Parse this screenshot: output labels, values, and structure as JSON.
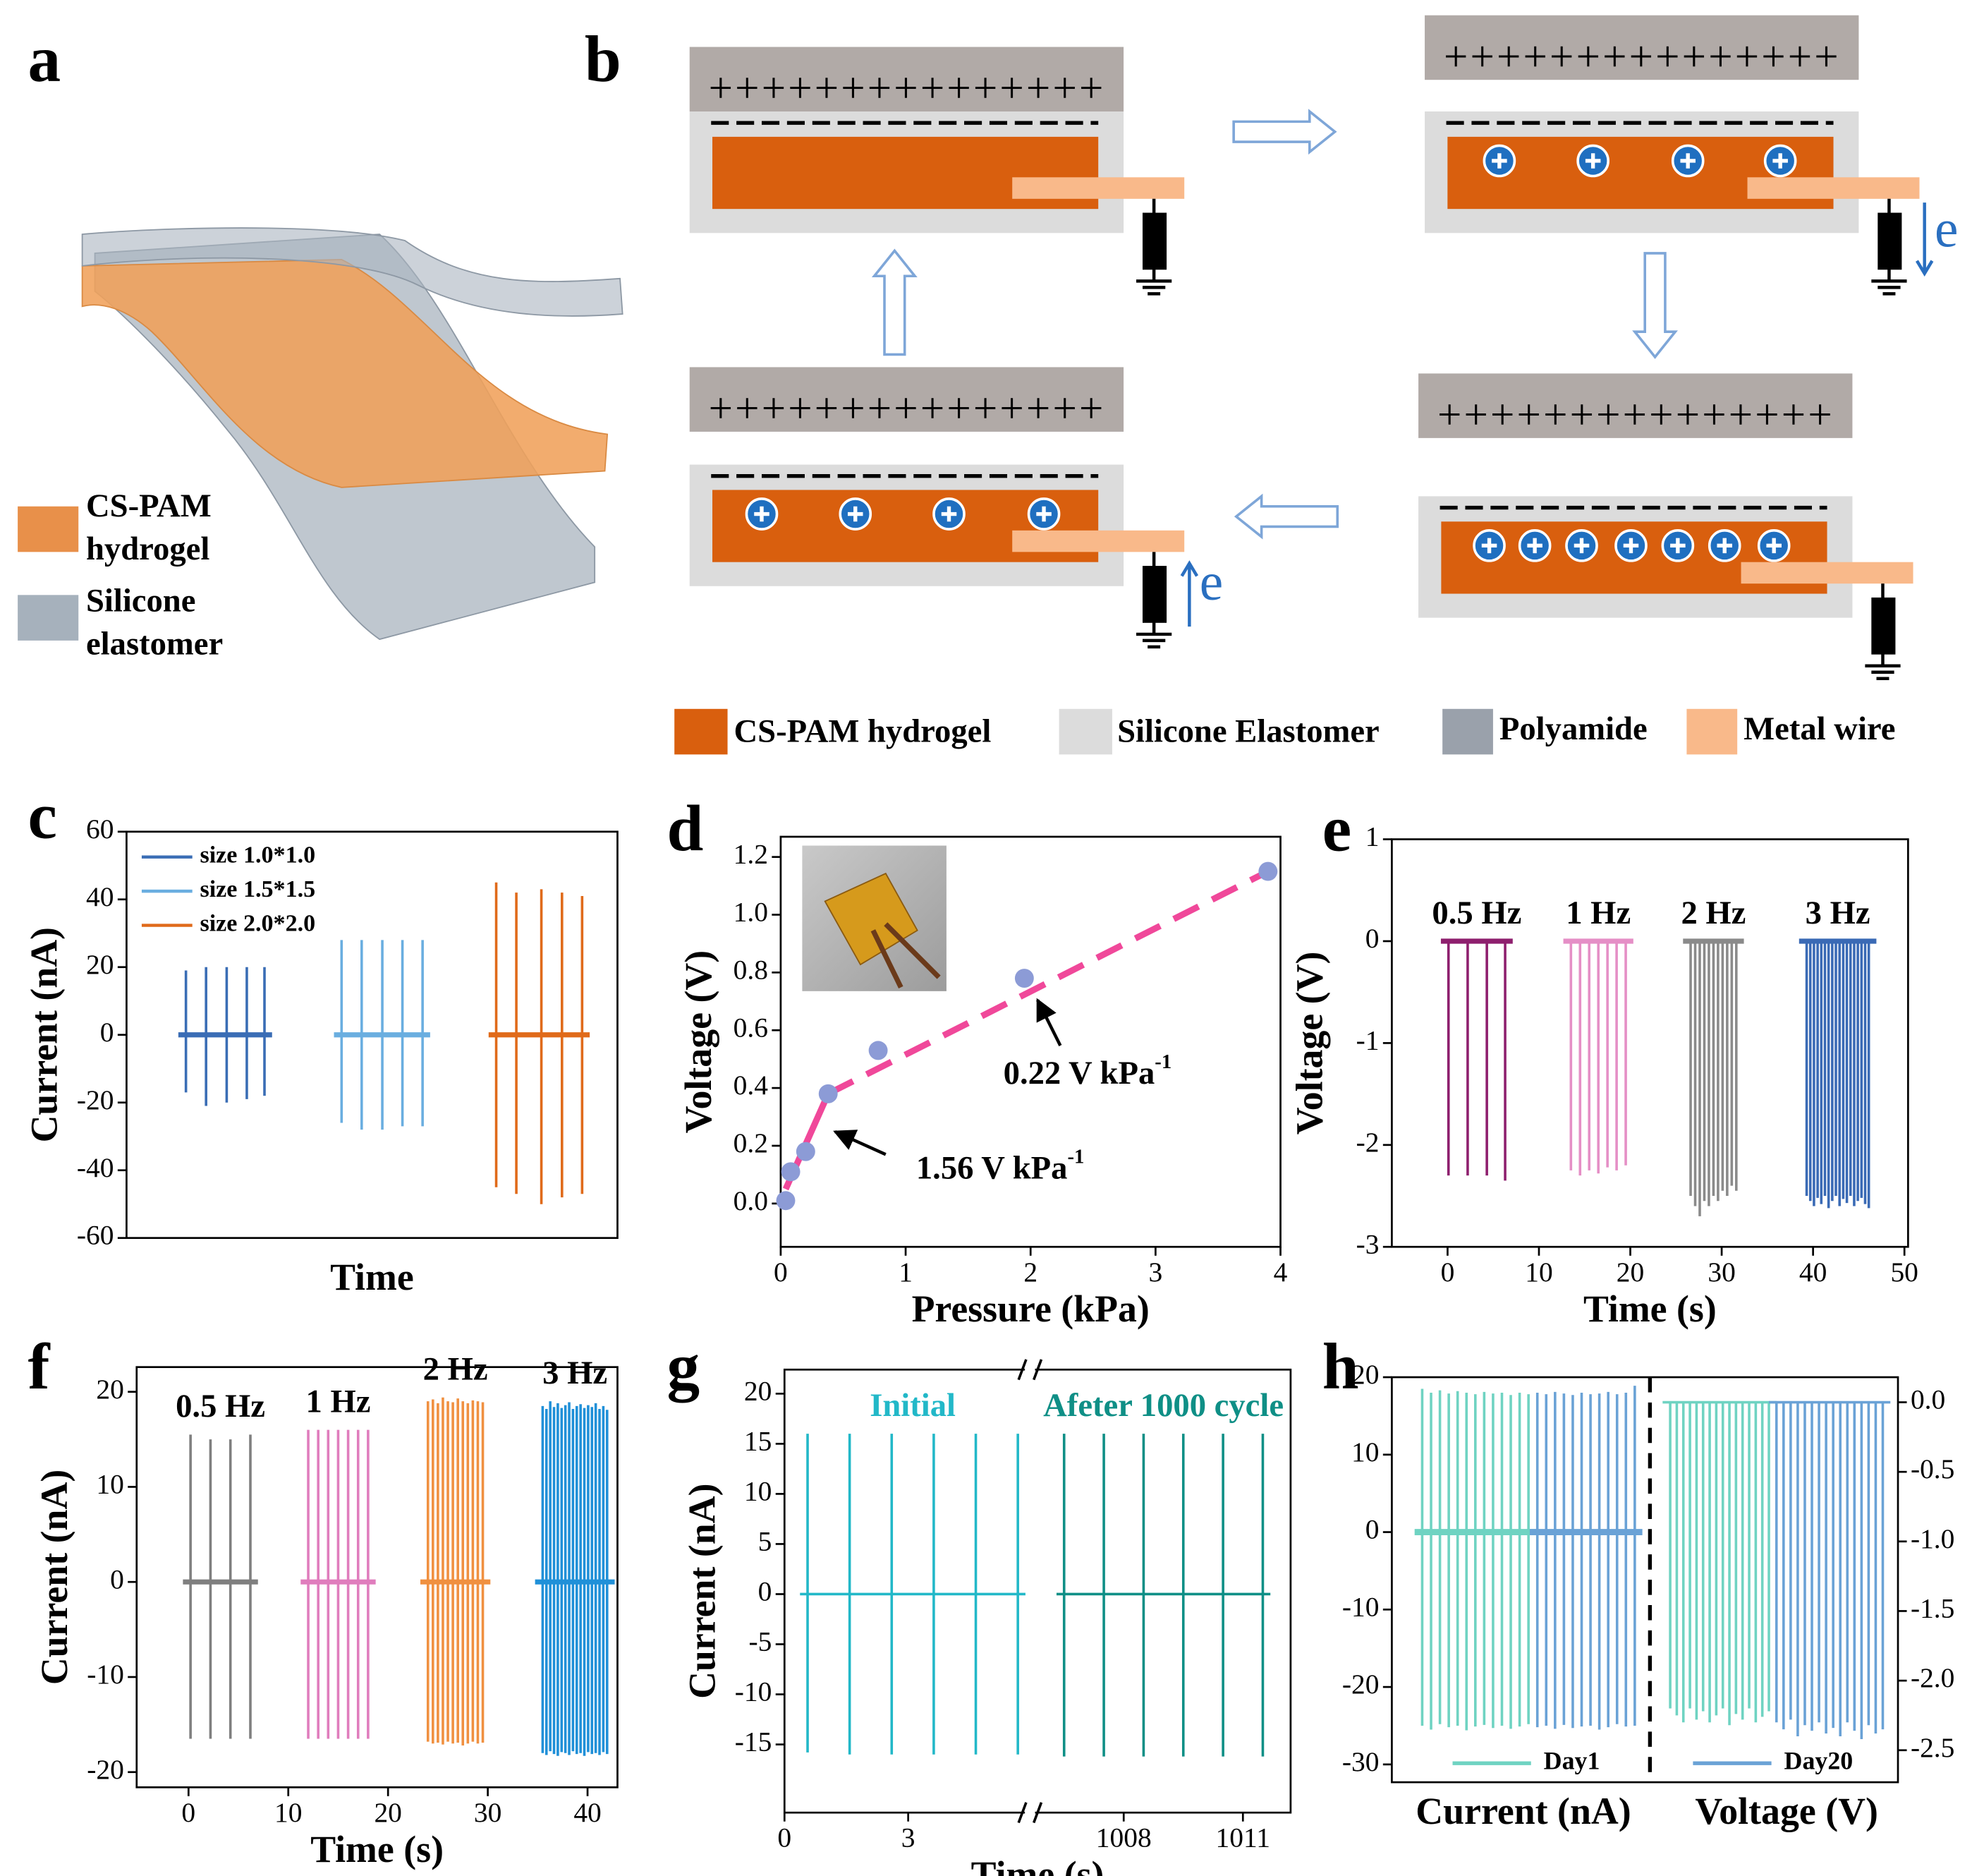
{
  "panel_a": {
    "label": "a",
    "legend": [
      {
        "lines": [
          "CS-PAM",
          "hydrogel"
        ]
      },
      {
        "lines": [
          "Silicone",
          "elastomer"
        ]
      }
    ]
  },
  "panel_b": {
    "label": "b",
    "charges": "+++++++++++++++",
    "electron": "e",
    "legend": [
      "CS-PAM hydrogel",
      "Silicone Elastomer",
      "Polyamide",
      "Metal wire"
    ]
  },
  "chart_data": [
    {
      "panel": "c",
      "type": "spike",
      "ylabel": "Current (nA)",
      "xlabel": "Time",
      "xlim": [
        0,
        100
      ],
      "ylim": [
        -60,
        60
      ],
      "yticks": [
        -60,
        -40,
        -20,
        0,
        20,
        40,
        60
      ],
      "legend": "upper left",
      "series": [
        {
          "name": "size 1.0*1.0",
          "color": "#3a6db5",
          "x": [
            12.1,
            16.2,
            20.4,
            24.5,
            28.1
          ],
          "peaks": [
            19,
            20,
            20,
            20,
            20
          ],
          "troughs": [
            -17,
            -21,
            -20,
            -19,
            -18
          ]
        },
        {
          "name": "size 1.5*1.5",
          "color": "#6aaee0",
          "x": [
            43.8,
            47.9,
            52.1,
            56.2,
            60.3
          ],
          "peaks": [
            28,
            28,
            28,
            28,
            28
          ],
          "troughs": [
            -26,
            -28,
            -28,
            -27,
            -27
          ]
        },
        {
          "name": "size 2.0*2.0",
          "color": "#e06a1a",
          "x": [
            75.3,
            79.4,
            84.5,
            88.7,
            92.8
          ],
          "peaks": [
            45,
            42,
            43,
            42,
            41
          ],
          "troughs": [
            -45,
            -47,
            -50,
            -48,
            -47
          ]
        }
      ]
    },
    {
      "panel": "d",
      "type": "scatter",
      "ylabel": "Voltage (V)",
      "xlabel": "Pressure (kPa)",
      "xlim": [
        0,
        4
      ],
      "ylim": [
        -0.15,
        1.27
      ],
      "xticks": [
        0,
        1,
        2,
        3,
        4
      ],
      "yticks": [
        {
          "value": 0,
          "label": "0.0"
        },
        0.2,
        0.4,
        0.6,
        0.8,
        {
          "value": 1,
          "label": "1.0"
        },
        1.2
      ],
      "color": "#8c9bd6",
      "x": [
        0.04,
        0.08,
        0.2,
        0.38,
        0.78,
        1.95,
        3.9
      ],
      "values": [
        0.01,
        0.11,
        0.18,
        0.38,
        0.53,
        0.78,
        1.15
      ],
      "fit": {
        "color": "#f0489a",
        "segments": [
          {
            "x": [
              0.04,
              0.38
            ],
            "values": [
              0.05,
              0.38
            ]
          },
          {
            "x": [
              0.38,
              3.9
            ],
            "values": [
              0.38,
              1.15
            ]
          }
        ]
      },
      "annotations": [
        {
          "text": "1.56 V kPa",
          "sup": "-1"
        },
        {
          "text": "0.22 V kPa",
          "sup": "-1"
        }
      ]
    },
    {
      "panel": "e",
      "type": "spike",
      "ylabel": "Voltage (V)",
      "xlabel": "Time (s)",
      "xlim": [
        -6.1,
        50.4
      ],
      "ylim": [
        -3,
        1
      ],
      "xticks": [
        0,
        10,
        20,
        30,
        40,
        50
      ],
      "yticks": [
        -3,
        -2,
        -1,
        0,
        1
      ],
      "series": [
        {
          "name": "0.5 Hz",
          "color": "#8e1f6e",
          "x": [
            0.1,
            2.2,
            4.3,
            6.3
          ],
          "troughs": [
            -2.3,
            -2.3,
            -2.3,
            -2.35
          ]
        },
        {
          "name": "1 Hz",
          "color": "#e58fc6",
          "x": [
            13.5,
            14.5,
            15.5,
            16.5,
            17.5,
            18.5,
            19.5
          ],
          "troughs": [
            -2.25,
            -2.3,
            -2.25,
            -2.28,
            -2.22,
            -2.25,
            -2.2
          ]
        },
        {
          "name": "2 Hz",
          "color": "#8a8a8a",
          "x": [
            26.6,
            27.1,
            27.6,
            28.1,
            28.6,
            29.1,
            29.6,
            30.1,
            30.6,
            31.1,
            31.6
          ],
          "troughs": [
            -2.5,
            -2.6,
            -2.7,
            -2.55,
            -2.6,
            -2.5,
            -2.55,
            -2.45,
            -2.5,
            -2.4,
            -2.45
          ]
        },
        {
          "name": "3 Hz",
          "color": "#3a6ab5",
          "x": [
            39.3,
            39.7,
            40.1,
            40.5,
            40.9,
            41.3,
            41.7,
            42.1,
            42.5,
            42.9,
            43.3,
            43.7,
            44.1,
            44.5,
            44.9,
            45.3,
            45.7,
            46.1
          ],
          "troughs": [
            -2.5,
            -2.55,
            -2.6,
            -2.52,
            -2.58,
            -2.5,
            -2.62,
            -2.55,
            -2.5,
            -2.6,
            -2.53,
            -2.57,
            -2.5,
            -2.6,
            -2.55,
            -2.52,
            -2.58,
            -2.62
          ]
        }
      ]
    },
    {
      "panel": "f",
      "type": "spike",
      "ylabel": "Current (nA)",
      "xlabel": "Time (s)",
      "xlim": [
        -5.2,
        43
      ],
      "ylim": [
        -21.6,
        22.6
      ],
      "xticks": [
        0,
        10,
        20,
        30,
        40
      ],
      "yticks": [
        -20,
        -10,
        0,
        10,
        20
      ],
      "series": [
        {
          "name": "0.5 Hz",
          "color": "#7f7f7f",
          "x": [
            0.2,
            2.2,
            4.2,
            6.2
          ],
          "peaks": [
            15.5,
            15,
            15,
            15.5
          ],
          "troughs": [
            -16.5,
            -16.5,
            -16.5,
            -16.5
          ]
        },
        {
          "name": "1 Hz",
          "color": "#e07dbd",
          "x": [
            12,
            13,
            14,
            15,
            16,
            17,
            18
          ],
          "peaks": [
            16,
            16,
            16,
            16,
            16,
            16,
            16
          ],
          "troughs": [
            -16.5,
            -16.5,
            -16.5,
            -16.5,
            -16.5,
            -16.5,
            -16.5
          ]
        },
        {
          "name": "2 Hz",
          "color": "#f09040",
          "x": [
            24,
            24.5,
            25,
            25.5,
            26,
            26.5,
            27,
            27.5,
            28,
            28.5,
            29,
            29.5
          ],
          "peaks": [
            19,
            19.2,
            18.8,
            19.4,
            19,
            18.9,
            19.3,
            19,
            18.8,
            19.1,
            19,
            18.9
          ],
          "troughs": [
            -16.8,
            -17,
            -16.9,
            -17.1,
            -16.8,
            -17,
            -16.9,
            -17.2,
            -17,
            -16.8,
            -17,
            -16.9
          ]
        },
        {
          "name": "3 Hz",
          "color": "#2090d8",
          "x": [
            35.5,
            35.88,
            36.26,
            36.64,
            37.02,
            37.4,
            37.78,
            38.16,
            38.54,
            38.92,
            39.3,
            39.68,
            40.06,
            40.44,
            40.82,
            41.2,
            41.58,
            41.96
          ],
          "peaks": [
            18.5,
            18.2,
            19,
            18.4,
            18.8,
            18.3,
            18.6,
            18.9,
            18.2,
            18.5,
            18.7,
            18.3,
            18.6,
            18.4,
            18.8,
            18.2,
            18.5,
            18.1
          ],
          "troughs": [
            -18,
            -18.2,
            -17.8,
            -18.1,
            -18.3,
            -17.9,
            -18,
            -18.2,
            -17.8,
            -18.1,
            -18,
            -18.3,
            -17.9,
            -18.1,
            -18,
            -18.2,
            -17.9,
            -18.1
          ]
        }
      ]
    },
    {
      "panel": "g",
      "type": "spike",
      "ylabel": "Current (nA)",
      "xlabel": "Time (s)",
      "xlim": [
        0,
        1012.2
      ],
      "axis_break": [
        5.8,
        1005.8
      ],
      "ylim": [
        -21.8,
        22.4
      ],
      "xticks": [
        0,
        3,
        1008,
        1011
      ],
      "yticks": [
        -15,
        -10,
        -5,
        0,
        5,
        10,
        15,
        20
      ],
      "series": [
        {
          "name": "Initial",
          "color": "#22b8c8",
          "x": [
            0.56,
            1.58,
            2.6,
            3.62,
            4.64,
            5.66
          ],
          "peaks": [
            16,
            16,
            16,
            16,
            16,
            16
          ],
          "troughs": [
            -15.8,
            -16,
            -16,
            -16,
            -16,
            -16
          ]
        },
        {
          "name": "Afeter 1000 cycle",
          "color": "#0f8f86",
          "x": [
            1006.5,
            1007.5,
            1008.5,
            1009.5,
            1010.5,
            1011.5
          ],
          "peaks": [
            16,
            16,
            16,
            16,
            16,
            16
          ],
          "troughs": [
            -16.2,
            -16.2,
            -16.2,
            -16.2,
            -16.2,
            -16.2
          ]
        }
      ]
    },
    {
      "panel": "h",
      "type": "spike_dual",
      "xlabel": [
        "Current (nA)",
        "Voltage (V)"
      ],
      "xlim": [
        0,
        100
      ],
      "ylim": [
        -32.3,
        20
      ],
      "yticks": [
        -30,
        -20,
        -10,
        0,
        10,
        20
      ],
      "y2lim": [
        -2.73,
        0.18
      ],
      "y2ticks": [
        {
          "value": 0,
          "label": "0.0"
        },
        -0.5,
        {
          "value": -1,
          "label": "-1.0"
        },
        -1.5,
        {
          "value": -2,
          "label": "-2.0"
        },
        -2.5
      ],
      "series": [
        {
          "name": "Day1",
          "color": "#6fd3c2",
          "current": {
            "x": [
              6,
              7.75,
              9.5,
              11.25,
              13,
              14.75,
              16.5,
              18.25,
              20,
              21.75,
              23.5,
              25.25,
              27
            ],
            "peaks": [
              18.5,
              18,
              18.3,
              17.9,
              18.2,
              18,
              17.8,
              18.1,
              17.9,
              18,
              17.7,
              18,
              17.8
            ],
            "troughs": [
              -25,
              -25.5,
              -24.8,
              -25.2,
              -25,
              -25.6,
              -25.1,
              -24.9,
              -25.3,
              -25,
              -25.4,
              -25.1,
              -24.8
            ]
          },
          "voltage": {
            "axis": "y2",
            "x": [
              55,
              56.3,
              57.6,
              58.9,
              60.2,
              61.5,
              62.8,
              64.1,
              65.4,
              66.7,
              68,
              69.3,
              70.6,
              71.9,
              73.2,
              74.5
            ],
            "troughs": [
              -2.2,
              -2.25,
              -2.3,
              -2.2,
              -2.28,
              -2.22,
              -2.3,
              -2.25,
              -2.2,
              -2.32,
              -2.24,
              -2.28,
              -2.2,
              -2.3,
              -2.26,
              -2.22
            ]
          }
        },
        {
          "name": "Day20",
          "color": "#6aa2d6",
          "current": {
            "x": [
              28.75,
              30.5,
              32.25,
              34,
              35.75,
              37.5,
              39.25,
              41,
              42.75,
              44.5,
              46.25,
              48
            ],
            "peaks": [
              18,
              17.8,
              18.1,
              17.9,
              17.7,
              18,
              17.8,
              17.9,
              18.1,
              17.8,
              18,
              18.9
            ],
            "troughs": [
              -25.2,
              -25,
              -25.4,
              -24.9,
              -25.3,
              -25.1,
              -25,
              -25.5,
              -25.2,
              -24.8,
              -25.1,
              -25
            ]
          },
          "voltage": {
            "axis": "y2",
            "x": [
              76,
              77.4,
              78.8,
              80.2,
              81.6,
              83,
              84.4,
              85.8,
              87.2,
              88.6,
              90,
              91.4,
              92.8,
              94.2,
              95.6,
              97
            ],
            "troughs": [
              -2.3,
              -2.35,
              -2.28,
              -2.4,
              -2.32,
              -2.36,
              -2.3,
              -2.38,
              -2.34,
              -2.4,
              -2.3,
              -2.36,
              -2.42,
              -2.32,
              -2.38,
              -2.35
            ]
          }
        }
      ]
    }
  ]
}
